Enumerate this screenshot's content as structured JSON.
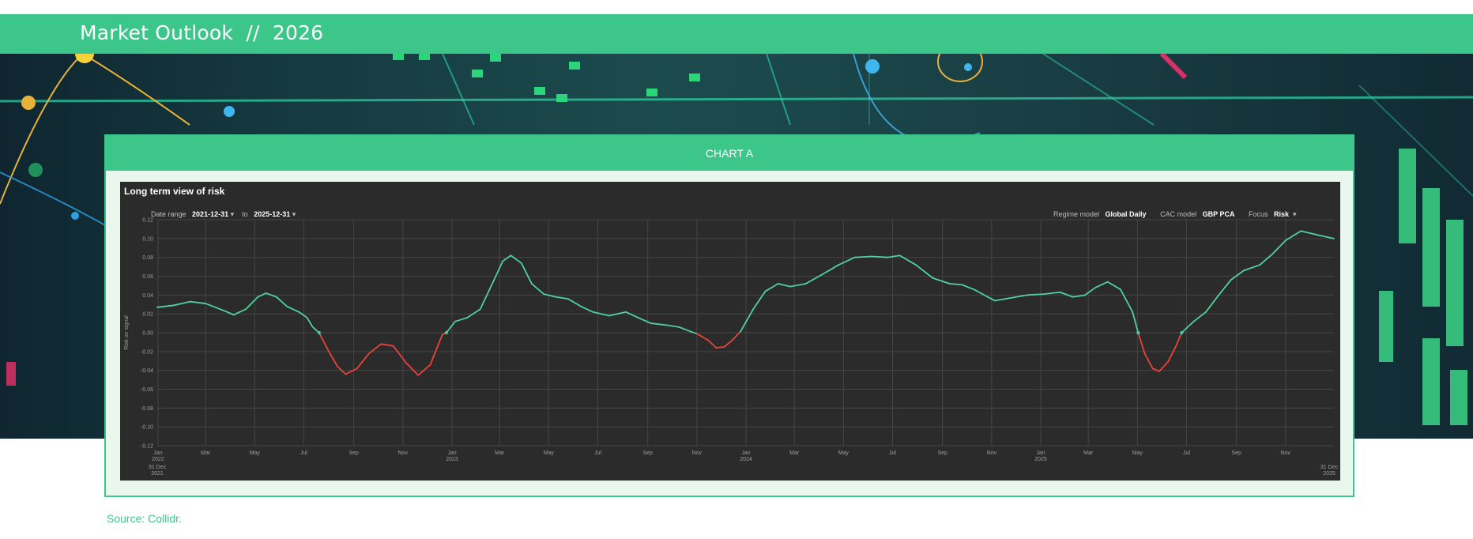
{
  "header": {
    "title": "Market Outlook  //  2026"
  },
  "panel": {
    "label": "CHART A"
  },
  "chart_controls": {
    "date_range_label": "Date range",
    "date_from": "2021-12-31",
    "to_label": "to",
    "date_to": "2025-12-31",
    "regime_label": "Regime model",
    "regime_value": "Global Daily",
    "cac_label": "CAC model",
    "cac_value": "GBP PCA",
    "focus_label": "Focus",
    "focus_value": "Risk",
    "dropdown_glyph": "▾"
  },
  "chart_data": {
    "type": "line",
    "title": "Long term view of risk",
    "xlabel": "",
    "ylabel": "Risk on signal",
    "xlim": [
      "2021-12-31",
      "2025-12-31"
    ],
    "ylim": [
      -0.12,
      0.12
    ],
    "yticks": [
      "0.12",
      "0.10",
      "0.08",
      "0.06",
      "0.04",
      "0.02",
      "0.00",
      "-0.02",
      "-0.04",
      "-0.06",
      "-0.08",
      "-0.10",
      "-0.12"
    ],
    "xticks": [
      {
        "date": "2022-01-01",
        "label": "Jan",
        "sub": "2022"
      },
      {
        "date": "2022-03-01",
        "label": "Mar"
      },
      {
        "date": "2022-05-01",
        "label": "May"
      },
      {
        "date": "2022-07-01",
        "label": "Jul"
      },
      {
        "date": "2022-09-01",
        "label": "Sep"
      },
      {
        "date": "2022-11-01",
        "label": "Nov"
      },
      {
        "date": "2023-01-01",
        "label": "Jan",
        "sub": "2023"
      },
      {
        "date": "2023-03-01",
        "label": "Mar"
      },
      {
        "date": "2023-05-01",
        "label": "May"
      },
      {
        "date": "2023-07-01",
        "label": "Jul"
      },
      {
        "date": "2023-09-01",
        "label": "Sep"
      },
      {
        "date": "2023-11-01",
        "label": "Nov"
      },
      {
        "date": "2024-01-01",
        "label": "Jan",
        "sub": "2024"
      },
      {
        "date": "2024-03-01",
        "label": "Mar"
      },
      {
        "date": "2024-05-01",
        "label": "May"
      },
      {
        "date": "2024-07-01",
        "label": "Jul"
      },
      {
        "date": "2024-09-01",
        "label": "Sep"
      },
      {
        "date": "2024-11-01",
        "label": "Nov"
      },
      {
        "date": "2025-01-01",
        "label": "Jan",
        "sub": "2025"
      },
      {
        "date": "2025-03-01",
        "label": "Mar"
      },
      {
        "date": "2025-05-01",
        "label": "May"
      },
      {
        "date": "2025-07-01",
        "label": "Jul"
      },
      {
        "date": "2025-09-01",
        "label": "Sep"
      },
      {
        "date": "2025-11-01",
        "label": "Nov"
      }
    ],
    "range_start_label": [
      "31 Dec",
      "2021"
    ],
    "range_end_label": [
      "31 Dec",
      "2025"
    ],
    "grid": true,
    "legend": "none",
    "colors": {
      "positive": "#4fd1a0",
      "negative": "#e8443c",
      "grid": "#454545",
      "background": "#2b2b2b"
    },
    "series": [
      {
        "points": [
          [
            "2021-12-31",
            0.027
          ],
          [
            "2022-01-20",
            0.029
          ],
          [
            "2022-02-10",
            0.033
          ],
          [
            "2022-03-01",
            0.031
          ],
          [
            "2022-03-25",
            0.023
          ],
          [
            "2022-04-05",
            0.019
          ],
          [
            "2022-04-20",
            0.025
          ],
          [
            "2022-05-05",
            0.038
          ],
          [
            "2022-05-15",
            0.042
          ],
          [
            "2022-05-28",
            0.038
          ],
          [
            "2022-06-10",
            0.028
          ],
          [
            "2022-06-25",
            0.022
          ],
          [
            "2022-07-05",
            0.016
          ],
          [
            "2022-07-12",
            0.006
          ],
          [
            "2022-07-20",
            0.0
          ],
          [
            "2022-08-01",
            -0.02
          ],
          [
            "2022-08-12",
            -0.036
          ],
          [
            "2022-08-22",
            -0.044
          ],
          [
            "2022-09-05",
            -0.038
          ],
          [
            "2022-09-20",
            -0.022
          ],
          [
            "2022-10-05",
            -0.012
          ],
          [
            "2022-10-20",
            -0.014
          ],
          [
            "2022-11-05",
            -0.032
          ],
          [
            "2022-11-20",
            -0.045
          ],
          [
            "2022-12-05",
            -0.034
          ],
          [
            "2022-12-20",
            -0.002
          ],
          [
            "2022-12-25",
            0.0
          ],
          [
            "2023-01-05",
            0.012
          ],
          [
            "2023-01-20",
            0.016
          ],
          [
            "2023-02-05",
            0.025
          ],
          [
            "2023-02-20",
            0.052
          ],
          [
            "2023-03-05",
            0.076
          ],
          [
            "2023-03-15",
            0.082
          ],
          [
            "2023-03-28",
            0.074
          ],
          [
            "2023-04-10",
            0.052
          ],
          [
            "2023-04-25",
            0.041
          ],
          [
            "2023-05-10",
            0.038
          ],
          [
            "2023-05-25",
            0.036
          ],
          [
            "2023-06-10",
            0.028
          ],
          [
            "2023-06-25",
            0.022
          ],
          [
            "2023-07-15",
            0.018
          ],
          [
            "2023-08-05",
            0.022
          ],
          [
            "2023-08-20",
            0.016
          ],
          [
            "2023-09-05",
            0.01
          ],
          [
            "2023-09-25",
            0.008
          ],
          [
            "2023-10-10",
            0.006
          ],
          [
            "2023-10-25",
            0.001
          ],
          [
            "2023-11-01",
            -0.001
          ],
          [
            "2023-11-15",
            -0.008
          ],
          [
            "2023-11-25",
            -0.016
          ],
          [
            "2023-12-05",
            -0.015
          ],
          [
            "2023-12-15",
            -0.008
          ],
          [
            "2023-12-25",
            0.001
          ],
          [
            "2024-01-10",
            0.025
          ],
          [
            "2024-01-25",
            0.044
          ],
          [
            "2024-02-10",
            0.052
          ],
          [
            "2024-02-25",
            0.049
          ],
          [
            "2024-03-15",
            0.052
          ],
          [
            "2024-04-05",
            0.062
          ],
          [
            "2024-04-25",
            0.072
          ],
          [
            "2024-05-15",
            0.08
          ],
          [
            "2024-06-05",
            0.081
          ],
          [
            "2024-06-25",
            0.08
          ],
          [
            "2024-07-10",
            0.082
          ],
          [
            "2024-07-30",
            0.072
          ],
          [
            "2024-08-20",
            0.058
          ],
          [
            "2024-09-10",
            0.052
          ],
          [
            "2024-09-25",
            0.051
          ],
          [
            "2024-10-10",
            0.046
          ],
          [
            "2024-10-25",
            0.039
          ],
          [
            "2024-11-05",
            0.034
          ],
          [
            "2024-11-25",
            0.037
          ],
          [
            "2024-12-15",
            0.04
          ],
          [
            "2025-01-05",
            0.041
          ],
          [
            "2025-01-25",
            0.043
          ],
          [
            "2025-02-10",
            0.038
          ],
          [
            "2025-02-25",
            0.04
          ],
          [
            "2025-03-10",
            0.048
          ],
          [
            "2025-03-25",
            0.054
          ],
          [
            "2025-04-10",
            0.046
          ],
          [
            "2025-04-25",
            0.022
          ],
          [
            "2025-05-02",
            0.0
          ],
          [
            "2025-05-10",
            -0.022
          ],
          [
            "2025-05-20",
            -0.038
          ],
          [
            "2025-05-28",
            -0.041
          ],
          [
            "2025-06-08",
            -0.031
          ],
          [
            "2025-06-18",
            -0.014
          ],
          [
            "2025-06-25",
            0.0
          ],
          [
            "2025-07-10",
            0.012
          ],
          [
            "2025-07-25",
            0.022
          ],
          [
            "2025-08-10",
            0.04
          ],
          [
            "2025-08-25",
            0.056
          ],
          [
            "2025-09-10",
            0.066
          ],
          [
            "2025-09-30",
            0.072
          ],
          [
            "2025-10-15",
            0.083
          ],
          [
            "2025-11-01",
            0.098
          ],
          [
            "2025-11-20",
            0.108
          ],
          [
            "2025-12-10",
            0.104
          ],
          [
            "2025-12-31",
            0.1
          ]
        ]
      }
    ]
  }
}
